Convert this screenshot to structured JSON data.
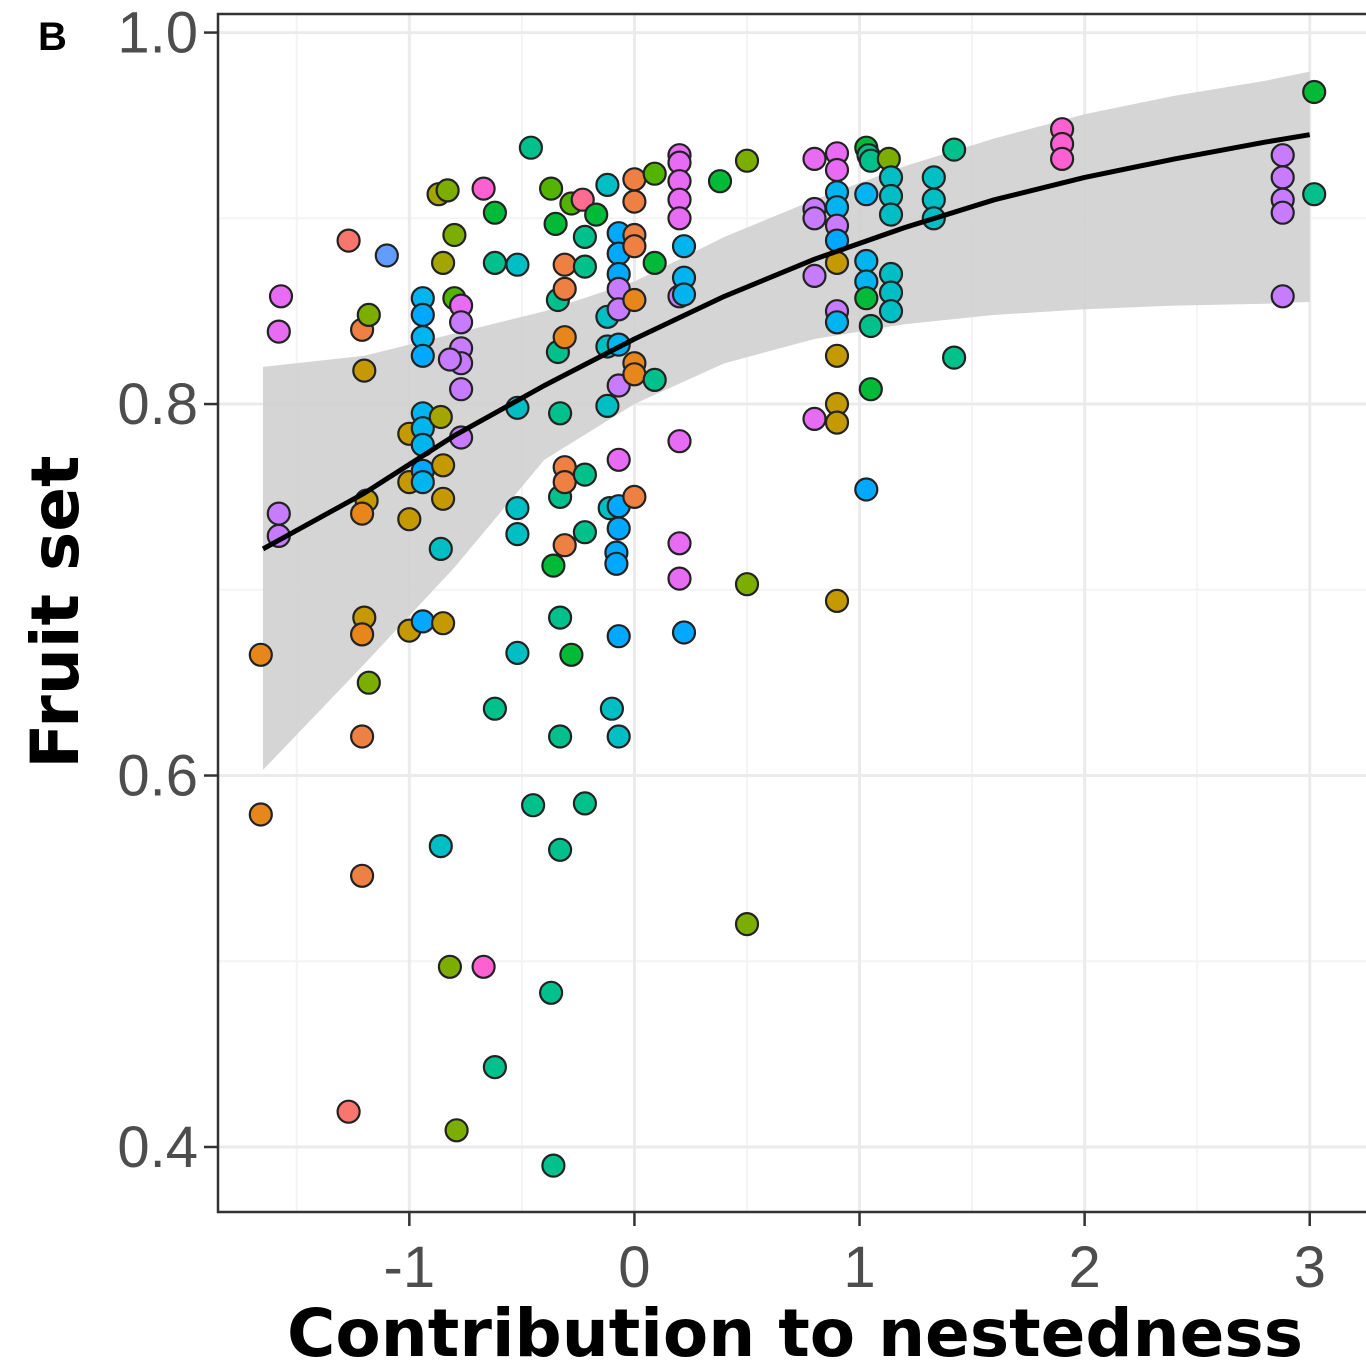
{
  "panel_label": "B",
  "chart_data": {
    "type": "scatter",
    "xlabel": "Contribution to nestedness",
    "ylabel": "Fruit set",
    "xlim": [
      -1.85,
      3.25
    ],
    "ylim": [
      0.365,
      1.01
    ],
    "x_ticks": [
      -1,
      0,
      1,
      2,
      3
    ],
    "x_tick_labels": [
      "-1",
      "0",
      "1",
      "2",
      "3"
    ],
    "y_ticks": [
      0.4,
      0.6,
      0.8,
      1.0
    ],
    "y_tick_labels": [
      "0.4",
      "0.6",
      "0.8",
      "1.0"
    ],
    "grid": true,
    "colors": {
      "ribbon": "#d0d0d0",
      "fit_line": "#000000",
      "point_stroke": "#222222",
      "grid": "#ebebeb",
      "border": "#333333",
      "palette": [
        "#f8766d",
        "#ee8044",
        "#e7861b",
        "#c49a00",
        "#a3a500",
        "#7cae00",
        "#53b400",
        "#00ba38",
        "#00c08b",
        "#00bfc4",
        "#00b4f0",
        "#00a9ff",
        "#619cff",
        "#c77cff",
        "#e76bf3",
        "#fd61d1",
        "#ff6c91",
        "#b983ff"
      ]
    },
    "fit": {
      "x": [
        -1.65,
        -1.2,
        -0.8,
        -0.4,
        0.0,
        0.4,
        0.8,
        1.2,
        1.6,
        2.0,
        2.4,
        2.8,
        3.0
      ],
      "y": [
        0.722,
        0.752,
        0.783,
        0.81,
        0.835,
        0.858,
        0.878,
        0.895,
        0.91,
        0.922,
        0.932,
        0.941,
        0.945
      ],
      "lower": [
        0.603,
        0.66,
        0.712,
        0.77,
        0.8,
        0.822,
        0.835,
        0.843,
        0.848,
        0.851,
        0.853,
        0.854,
        0.855
      ],
      "upper": [
        0.82,
        0.826,
        0.838,
        0.85,
        0.866,
        0.89,
        0.91,
        0.928,
        0.943,
        0.956,
        0.966,
        0.974,
        0.979
      ]
    },
    "points": [
      {
        "x": -1.57,
        "y": 0.858,
        "c": 14
      },
      {
        "x": -1.58,
        "y": 0.839,
        "c": 14
      },
      {
        "x": -1.58,
        "y": 0.741,
        "c": 13
      },
      {
        "x": -1.58,
        "y": 0.729,
        "c": 13
      },
      {
        "x": -1.66,
        "y": 0.665,
        "c": 2
      },
      {
        "x": -1.66,
        "y": 0.579,
        "c": 2
      },
      {
        "x": -1.27,
        "y": 0.888,
        "c": 0
      },
      {
        "x": -1.27,
        "y": 0.419,
        "c": 0
      },
      {
        "x": -1.21,
        "y": 0.84,
        "c": 1
      },
      {
        "x": -1.2,
        "y": 0.818,
        "c": 3
      },
      {
        "x": -1.19,
        "y": 0.748,
        "c": 3
      },
      {
        "x": -1.21,
        "y": 0.741,
        "c": 2
      },
      {
        "x": -1.2,
        "y": 0.685,
        "c": 3
      },
      {
        "x": -1.21,
        "y": 0.676,
        "c": 2
      },
      {
        "x": -1.21,
        "y": 0.621,
        "c": 1
      },
      {
        "x": -1.21,
        "y": 0.546,
        "c": 1
      },
      {
        "x": -1.18,
        "y": 0.848,
        "c": 5
      },
      {
        "x": -1.18,
        "y": 0.65,
        "c": 5
      },
      {
        "x": -1.1,
        "y": 0.88,
        "c": 12
      },
      {
        "x": -1.0,
        "y": 0.784,
        "c": 3
      },
      {
        "x": -1.0,
        "y": 0.758,
        "c": 3
      },
      {
        "x": -1.0,
        "y": 0.738,
        "c": 3
      },
      {
        "x": -1.0,
        "y": 0.678,
        "c": 3
      },
      {
        "x": -0.94,
        "y": 0.857,
        "c": 10
      },
      {
        "x": -0.94,
        "y": 0.848,
        "c": 11
      },
      {
        "x": -0.94,
        "y": 0.836,
        "c": 10
      },
      {
        "x": -0.94,
        "y": 0.826,
        "c": 11
      },
      {
        "x": -0.94,
        "y": 0.795,
        "c": 10
      },
      {
        "x": -0.94,
        "y": 0.787,
        "c": 10
      },
      {
        "x": -0.94,
        "y": 0.778,
        "c": 10
      },
      {
        "x": -0.94,
        "y": 0.764,
        "c": 11
      },
      {
        "x": -0.94,
        "y": 0.758,
        "c": 10
      },
      {
        "x": -0.94,
        "y": 0.683,
        "c": 11
      },
      {
        "x": -0.87,
        "y": 0.913,
        "c": 4
      },
      {
        "x": -0.83,
        "y": 0.915,
        "c": 5
      },
      {
        "x": -0.85,
        "y": 0.876,
        "c": 4
      },
      {
        "x": -0.8,
        "y": 0.891,
        "c": 5
      },
      {
        "x": -0.8,
        "y": 0.857,
        "c": 6
      },
      {
        "x": -0.86,
        "y": 0.793,
        "c": 4
      },
      {
        "x": -0.85,
        "y": 0.767,
        "c": 3
      },
      {
        "x": -0.85,
        "y": 0.749,
        "c": 3
      },
      {
        "x": -0.86,
        "y": 0.722,
        "c": 9
      },
      {
        "x": -0.85,
        "y": 0.682,
        "c": 3
      },
      {
        "x": -0.86,
        "y": 0.562,
        "c": 9
      },
      {
        "x": -0.82,
        "y": 0.497,
        "c": 5
      },
      {
        "x": -0.79,
        "y": 0.409,
        "c": 5
      },
      {
        "x": -0.77,
        "y": 0.853,
        "c": 14
      },
      {
        "x": -0.77,
        "y": 0.844,
        "c": 13
      },
      {
        "x": -0.77,
        "y": 0.83,
        "c": 13
      },
      {
        "x": -0.77,
        "y": 0.822,
        "c": 13
      },
      {
        "x": -0.77,
        "y": 0.808,
        "c": 13
      },
      {
        "x": -0.77,
        "y": 0.782,
        "c": 13
      },
      {
        "x": -0.82,
        "y": 0.824,
        "c": 13
      },
      {
        "x": -0.67,
        "y": 0.916,
        "c": 15
      },
      {
        "x": -0.67,
        "y": 0.497,
        "c": 15
      },
      {
        "x": -0.62,
        "y": 0.903,
        "c": 7
      },
      {
        "x": -0.62,
        "y": 0.876,
        "c": 8
      },
      {
        "x": -0.62,
        "y": 0.636,
        "c": 8
      },
      {
        "x": -0.62,
        "y": 0.443,
        "c": 8
      },
      {
        "x": -0.52,
        "y": 0.875,
        "c": 9
      },
      {
        "x": -0.52,
        "y": 0.798,
        "c": 9
      },
      {
        "x": -0.52,
        "y": 0.744,
        "c": 9
      },
      {
        "x": -0.52,
        "y": 0.73,
        "c": 9
      },
      {
        "x": -0.52,
        "y": 0.666,
        "c": 9
      },
      {
        "x": -0.46,
        "y": 0.938,
        "c": 8
      },
      {
        "x": -0.45,
        "y": 0.584,
        "c": 8
      },
      {
        "x": -0.37,
        "y": 0.916,
        "c": 6
      },
      {
        "x": -0.35,
        "y": 0.897,
        "c": 7
      },
      {
        "x": -0.34,
        "y": 0.856,
        "c": 8
      },
      {
        "x": -0.34,
        "y": 0.828,
        "c": 8
      },
      {
        "x": -0.33,
        "y": 0.795,
        "c": 8
      },
      {
        "x": -0.33,
        "y": 0.75,
        "c": 8
      },
      {
        "x": -0.36,
        "y": 0.713,
        "c": 7
      },
      {
        "x": -0.33,
        "y": 0.685,
        "c": 8
      },
      {
        "x": -0.33,
        "y": 0.621,
        "c": 8
      },
      {
        "x": -0.33,
        "y": 0.56,
        "c": 8
      },
      {
        "x": -0.37,
        "y": 0.483,
        "c": 8
      },
      {
        "x": -0.36,
        "y": 0.39,
        "c": 8
      },
      {
        "x": -0.31,
        "y": 0.875,
        "c": 1
      },
      {
        "x": -0.31,
        "y": 0.862,
        "c": 1
      },
      {
        "x": -0.31,
        "y": 0.836,
        "c": 2
      },
      {
        "x": -0.31,
        "y": 0.766,
        "c": 1
      },
      {
        "x": -0.31,
        "y": 0.758,
        "c": 1
      },
      {
        "x": -0.31,
        "y": 0.724,
        "c": 1
      },
      {
        "x": -0.28,
        "y": 0.908,
        "c": 6
      },
      {
        "x": -0.28,
        "y": 0.665,
        "c": 7
      },
      {
        "x": -0.23,
        "y": 0.91,
        "c": 16
      },
      {
        "x": -0.22,
        "y": 0.89,
        "c": 8
      },
      {
        "x": -0.22,
        "y": 0.874,
        "c": 8
      },
      {
        "x": -0.22,
        "y": 0.762,
        "c": 8
      },
      {
        "x": -0.22,
        "y": 0.731,
        "c": 8
      },
      {
        "x": -0.22,
        "y": 0.585,
        "c": 8
      },
      {
        "x": -0.17,
        "y": 0.902,
        "c": 7
      },
      {
        "x": -0.12,
        "y": 0.918,
        "c": 9
      },
      {
        "x": -0.12,
        "y": 0.847,
        "c": 9
      },
      {
        "x": -0.12,
        "y": 0.831,
        "c": 9
      },
      {
        "x": -0.12,
        "y": 0.799,
        "c": 9
      },
      {
        "x": -0.11,
        "y": 0.744,
        "c": 9
      },
      {
        "x": -0.1,
        "y": 0.636,
        "c": 9
      },
      {
        "x": -0.07,
        "y": 0.892,
        "c": 11
      },
      {
        "x": -0.07,
        "y": 0.881,
        "c": 11
      },
      {
        "x": -0.07,
        "y": 0.87,
        "c": 11
      },
      {
        "x": -0.07,
        "y": 0.862,
        "c": 13
      },
      {
        "x": -0.07,
        "y": 0.851,
        "c": 13
      },
      {
        "x": -0.07,
        "y": 0.832,
        "c": 10
      },
      {
        "x": -0.07,
        "y": 0.81,
        "c": 13
      },
      {
        "x": -0.07,
        "y": 0.77,
        "c": 14
      },
      {
        "x": -0.07,
        "y": 0.745,
        "c": 11
      },
      {
        "x": -0.07,
        "y": 0.733,
        "c": 11
      },
      {
        "x": -0.08,
        "y": 0.72,
        "c": 11
      },
      {
        "x": -0.08,
        "y": 0.714,
        "c": 11
      },
      {
        "x": -0.07,
        "y": 0.675,
        "c": 11
      },
      {
        "x": -0.07,
        "y": 0.621,
        "c": 9
      },
      {
        "x": 0.0,
        "y": 0.921,
        "c": 1
      },
      {
        "x": 0.0,
        "y": 0.909,
        "c": 1
      },
      {
        "x": 0.0,
        "y": 0.891,
        "c": 1
      },
      {
        "x": 0.0,
        "y": 0.885,
        "c": 1
      },
      {
        "x": 0.0,
        "y": 0.856,
        "c": 2
      },
      {
        "x": 0.0,
        "y": 0.822,
        "c": 2
      },
      {
        "x": 0.0,
        "y": 0.816,
        "c": 2
      },
      {
        "x": 0.0,
        "y": 0.75,
        "c": 1
      },
      {
        "x": 0.09,
        "y": 0.924,
        "c": 6
      },
      {
        "x": 0.09,
        "y": 0.876,
        "c": 7
      },
      {
        "x": 0.09,
        "y": 0.813,
        "c": 8
      },
      {
        "x": 0.2,
        "y": 0.934,
        "c": 14
      },
      {
        "x": 0.2,
        "y": 0.93,
        "c": 14
      },
      {
        "x": 0.2,
        "y": 0.92,
        "c": 14
      },
      {
        "x": 0.2,
        "y": 0.91,
        "c": 14
      },
      {
        "x": 0.2,
        "y": 0.9,
        "c": 14
      },
      {
        "x": 0.2,
        "y": 0.858,
        "c": 13
      },
      {
        "x": 0.2,
        "y": 0.78,
        "c": 14
      },
      {
        "x": 0.2,
        "y": 0.725,
        "c": 14
      },
      {
        "x": 0.2,
        "y": 0.706,
        "c": 14
      },
      {
        "x": 0.22,
        "y": 0.885,
        "c": 10
      },
      {
        "x": 0.22,
        "y": 0.868,
        "c": 10
      },
      {
        "x": 0.22,
        "y": 0.859,
        "c": 10
      },
      {
        "x": 0.22,
        "y": 0.677,
        "c": 11
      },
      {
        "x": 0.38,
        "y": 0.92,
        "c": 7
      },
      {
        "x": 0.5,
        "y": 0.931,
        "c": 5
      },
      {
        "x": 0.5,
        "y": 0.703,
        "c": 5
      },
      {
        "x": 0.5,
        "y": 0.52,
        "c": 5
      },
      {
        "x": 0.8,
        "y": 0.932,
        "c": 14
      },
      {
        "x": 0.8,
        "y": 0.905,
        "c": 13
      },
      {
        "x": 0.8,
        "y": 0.9,
        "c": 13
      },
      {
        "x": 0.8,
        "y": 0.869,
        "c": 13
      },
      {
        "x": 0.8,
        "y": 0.792,
        "c": 14
      },
      {
        "x": 0.9,
        "y": 0.935,
        "c": 14
      },
      {
        "x": 0.9,
        "y": 0.926,
        "c": 14
      },
      {
        "x": 0.9,
        "y": 0.914,
        "c": 10
      },
      {
        "x": 0.9,
        "y": 0.906,
        "c": 10
      },
      {
        "x": 0.9,
        "y": 0.896,
        "c": 13
      },
      {
        "x": 0.9,
        "y": 0.888,
        "c": 11
      },
      {
        "x": 0.9,
        "y": 0.876,
        "c": 3
      },
      {
        "x": 0.9,
        "y": 0.85,
        "c": 13
      },
      {
        "x": 0.9,
        "y": 0.844,
        "c": 10
      },
      {
        "x": 0.9,
        "y": 0.826,
        "c": 3
      },
      {
        "x": 0.9,
        "y": 0.8,
        "c": 3
      },
      {
        "x": 0.9,
        "y": 0.79,
        "c": 3
      },
      {
        "x": 0.9,
        "y": 0.694,
        "c": 3
      },
      {
        "x": 1.03,
        "y": 0.938,
        "c": 7
      },
      {
        "x": 1.04,
        "y": 0.934,
        "c": 8
      },
      {
        "x": 1.05,
        "y": 0.931,
        "c": 8
      },
      {
        "x": 1.03,
        "y": 0.913,
        "c": 10
      },
      {
        "x": 1.03,
        "y": 0.877,
        "c": 10
      },
      {
        "x": 1.03,
        "y": 0.866,
        "c": 10
      },
      {
        "x": 1.03,
        "y": 0.857,
        "c": 7
      },
      {
        "x": 1.03,
        "y": 0.754,
        "c": 11
      },
      {
        "x": 1.05,
        "y": 0.842,
        "c": 8
      },
      {
        "x": 1.05,
        "y": 0.808,
        "c": 7
      },
      {
        "x": 1.13,
        "y": 0.932,
        "c": 5
      },
      {
        "x": 1.14,
        "y": 0.922,
        "c": 9
      },
      {
        "x": 1.14,
        "y": 0.912,
        "c": 9
      },
      {
        "x": 1.14,
        "y": 0.902,
        "c": 9
      },
      {
        "x": 1.14,
        "y": 0.87,
        "c": 9
      },
      {
        "x": 1.14,
        "y": 0.86,
        "c": 9
      },
      {
        "x": 1.14,
        "y": 0.85,
        "c": 9
      },
      {
        "x": 1.33,
        "y": 0.922,
        "c": 9
      },
      {
        "x": 1.33,
        "y": 0.91,
        "c": 9
      },
      {
        "x": 1.33,
        "y": 0.9,
        "c": 9
      },
      {
        "x": 1.42,
        "y": 0.937,
        "c": 8
      },
      {
        "x": 1.42,
        "y": 0.825,
        "c": 8
      },
      {
        "x": 1.9,
        "y": 0.948,
        "c": 15
      },
      {
        "x": 1.9,
        "y": 0.94,
        "c": 15
      },
      {
        "x": 1.9,
        "y": 0.932,
        "c": 15
      },
      {
        "x": 2.88,
        "y": 0.934,
        "c": 13
      },
      {
        "x": 2.88,
        "y": 0.922,
        "c": 13
      },
      {
        "x": 2.88,
        "y": 0.91,
        "c": 13
      },
      {
        "x": 2.88,
        "y": 0.903,
        "c": 13
      },
      {
        "x": 2.88,
        "y": 0.858,
        "c": 13
      },
      {
        "x": 3.02,
        "y": 0.968,
        "c": 7
      },
      {
        "x": 3.02,
        "y": 0.913,
        "c": 8
      }
    ]
  }
}
